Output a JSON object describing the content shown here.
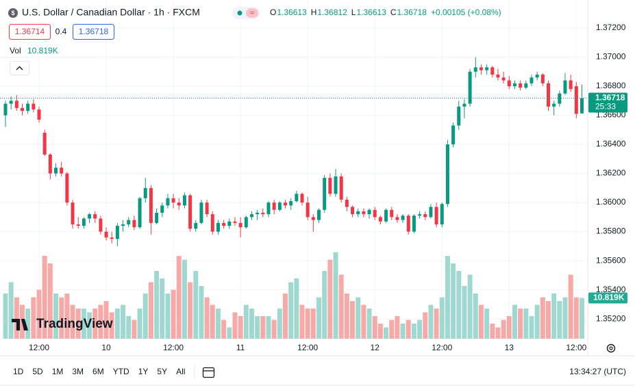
{
  "header": {
    "title": "U.S. Dollar / Canadian Dollar · 1h · FXCM",
    "legend": [
      {
        "label": "O",
        "value": "1.36613"
      },
      {
        "label": "H",
        "value": "1.36812"
      },
      {
        "label": "L",
        "value": "1.36613"
      },
      {
        "label": "C",
        "value": "1.36718"
      }
    ],
    "change": "+0.00105 (+0.08%)",
    "bid": "1.36714",
    "spread": "0.4",
    "ask": "1.36718",
    "vol_label": "Vol",
    "vol_value": "10.819K"
  },
  "logo": "TradingView",
  "toolbar": {
    "ranges": [
      "1D",
      "5D",
      "1M",
      "3M",
      "6M",
      "YTD",
      "1Y",
      "5Y",
      "All"
    ],
    "clock": "13:34:27 (UTC)"
  },
  "chart_data": {
    "type": "candlestick",
    "up_color": "#089981",
    "down_color": "#f23645",
    "volume_up_color": "#9fd8d1",
    "volume_down_color": "#f7a9a7",
    "ylim": [
      1.35064,
      1.37393
    ],
    "yticks": [
      {
        "value": 1.352,
        "label": "1.35200"
      },
      {
        "value": 1.354,
        "label": "1.35400"
      },
      {
        "value": 1.356,
        "label": "1.35600"
      },
      {
        "value": 1.358,
        "label": "1.35800"
      },
      {
        "value": 1.36,
        "label": "1.36000"
      },
      {
        "value": 1.362,
        "label": "1.36200"
      },
      {
        "value": 1.364,
        "label": "1.36400"
      },
      {
        "value": 1.366,
        "label": "1.36600"
      },
      {
        "value": 1.368,
        "label": "1.36800"
      },
      {
        "value": 1.37,
        "label": "1.37000"
      },
      {
        "value": 1.372,
        "label": "1.37200"
      }
    ],
    "x_labels": [
      {
        "value": 6,
        "label": "12:00"
      },
      {
        "value": 18,
        "label": "10"
      },
      {
        "value": 30,
        "label": "12:00"
      },
      {
        "value": 42,
        "label": "11"
      },
      {
        "value": 54,
        "label": "12:00"
      },
      {
        "value": 66,
        "label": "12"
      },
      {
        "value": 78,
        "label": "12:00"
      },
      {
        "value": 90,
        "label": "13"
      },
      {
        "value": 102,
        "label": "12:00"
      }
    ],
    "grid": true,
    "last_price": {
      "value": 1.36718,
      "label": "1.36718",
      "countdown": "25:33"
    },
    "volume_ylim": [
      0,
      90
    ],
    "volume_label": "10.819K",
    "ohlc": [
      [
        1.366,
        1.367,
        1.3652,
        1.3668
      ],
      [
        1.3668,
        1.3673,
        1.3664,
        1.367
      ],
      [
        1.367,
        1.3674,
        1.3663,
        1.3665
      ],
      [
        1.3665,
        1.3668,
        1.366,
        1.3663
      ],
      [
        1.3663,
        1.367,
        1.3661,
        1.3668
      ],
      [
        1.3668,
        1.3671,
        1.3662,
        1.3664
      ],
      [
        1.3664,
        1.3666,
        1.3655,
        1.3657
      ],
      [
        1.3648,
        1.365,
        1.3632,
        1.3633
      ],
      [
        1.3633,
        1.3634,
        1.3616,
        1.362
      ],
      [
        1.362,
        1.3627,
        1.3618,
        1.3624
      ],
      [
        1.3624,
        1.3628,
        1.3618,
        1.362
      ],
      [
        1.362,
        1.3621,
        1.3598,
        1.36
      ],
      [
        1.36,
        1.3602,
        1.3582,
        1.3585
      ],
      [
        1.3585,
        1.359,
        1.3582,
        1.3584
      ],
      [
        1.3584,
        1.359,
        1.3582,
        1.3589
      ],
      [
        1.3589,
        1.3593,
        1.3586,
        1.3592
      ],
      [
        1.3592,
        1.3594,
        1.3586,
        1.3589
      ],
      [
        1.3589,
        1.3591,
        1.3578,
        1.358
      ],
      [
        1.358,
        1.3583,
        1.3574,
        1.3576
      ],
      [
        1.3576,
        1.358,
        1.3572,
        1.3575
      ],
      [
        1.3575,
        1.3586,
        1.357,
        1.3584
      ],
      [
        1.3584,
        1.3588,
        1.358,
        1.3585
      ],
      [
        1.3585,
        1.359,
        1.3583,
        1.3588
      ],
      [
        1.3588,
        1.3591,
        1.3581,
        1.3583
      ],
      [
        1.3583,
        1.3604,
        1.3582,
        1.3603
      ],
      [
        1.3603,
        1.3617,
        1.36,
        1.361
      ],
      [
        1.361,
        1.3612,
        1.3578,
        1.3586
      ],
      [
        1.3586,
        1.3596,
        1.3585,
        1.3593
      ],
      [
        1.3593,
        1.36,
        1.359,
        1.3598
      ],
      [
        1.3598,
        1.3606,
        1.3596,
        1.3603
      ],
      [
        1.3603,
        1.3606,
        1.3596,
        1.36
      ],
      [
        1.36,
        1.3603,
        1.3595,
        1.3598
      ],
      [
        1.3598,
        1.3607,
        1.3596,
        1.3605
      ],
      [
        1.3605,
        1.3606,
        1.358,
        1.3582
      ],
      [
        1.3582,
        1.3588,
        1.358,
        1.3586
      ],
      [
        1.3586,
        1.3602,
        1.3585,
        1.36
      ],
      [
        1.36,
        1.3602,
        1.359,
        1.3592
      ],
      [
        1.3592,
        1.3594,
        1.3578,
        1.358
      ],
      [
        1.358,
        1.3588,
        1.3578,
        1.3586
      ],
      [
        1.3586,
        1.3588,
        1.3582,
        1.3584
      ],
      [
        1.3584,
        1.3589,
        1.3582,
        1.3587
      ],
      [
        1.3587,
        1.359,
        1.3584,
        1.3586
      ],
      [
        1.3586,
        1.359,
        1.3576,
        1.3583
      ],
      [
        1.3583,
        1.3591,
        1.3582,
        1.359
      ],
      [
        1.359,
        1.3594,
        1.3588,
        1.3592
      ],
      [
        1.3592,
        1.3595,
        1.3588,
        1.3593
      ],
      [
        1.3593,
        1.3596,
        1.359,
        1.3592
      ],
      [
        1.3592,
        1.3601,
        1.359,
        1.36
      ],
      [
        1.36,
        1.3602,
        1.3592,
        1.3595
      ],
      [
        1.3595,
        1.3601,
        1.3594,
        1.36
      ],
      [
        1.36,
        1.3602,
        1.3596,
        1.3598
      ],
      [
        1.3598,
        1.3603,
        1.3595,
        1.3601
      ],
      [
        1.3601,
        1.3608,
        1.36,
        1.3606
      ],
      [
        1.3606,
        1.3607,
        1.3598,
        1.36
      ],
      [
        1.36,
        1.3604,
        1.3588,
        1.359
      ],
      [
        1.359,
        1.3592,
        1.358,
        1.3588
      ],
      [
        1.3588,
        1.3596,
        1.3586,
        1.3595
      ],
      [
        1.3595,
        1.3619,
        1.3593,
        1.3617
      ],
      [
        1.3617,
        1.362,
        1.3604,
        1.3606
      ],
      [
        1.3606,
        1.3623,
        1.3604,
        1.3618
      ],
      [
        1.3618,
        1.362,
        1.36,
        1.3602
      ],
      [
        1.3602,
        1.3604,
        1.3594,
        1.3597
      ],
      [
        1.3597,
        1.3598,
        1.359,
        1.3592
      ],
      [
        1.3592,
        1.3596,
        1.359,
        1.3594
      ],
      [
        1.3594,
        1.3596,
        1.359,
        1.3592
      ],
      [
        1.3592,
        1.3596,
        1.3589,
        1.3595
      ],
      [
        1.3595,
        1.3597,
        1.3588,
        1.359
      ],
      [
        1.359,
        1.3591,
        1.3585,
        1.3587
      ],
      [
        1.3587,
        1.3596,
        1.3586,
        1.3595
      ],
      [
        1.3595,
        1.3597,
        1.3588,
        1.359
      ],
      [
        1.359,
        1.3592,
        1.3586,
        1.3588
      ],
      [
        1.3588,
        1.3592,
        1.3586,
        1.3591
      ],
      [
        1.3591,
        1.3592,
        1.3578,
        1.358
      ],
      [
        1.358,
        1.3592,
        1.3579,
        1.3591
      ],
      [
        1.3591,
        1.3594,
        1.3589,
        1.3592
      ],
      [
        1.3592,
        1.3594,
        1.3588,
        1.359
      ],
      [
        1.359,
        1.3599,
        1.3589,
        1.3597
      ],
      [
        1.3597,
        1.36,
        1.3583,
        1.3585
      ],
      [
        1.3585,
        1.36,
        1.3583,
        1.3599
      ],
      [
        1.3599,
        1.3643,
        1.3597,
        1.364
      ],
      [
        1.364,
        1.3655,
        1.3638,
        1.3653
      ],
      [
        1.3653,
        1.367,
        1.365,
        1.3666
      ],
      [
        1.3666,
        1.3671,
        1.3658,
        1.3668
      ],
      [
        1.3668,
        1.3692,
        1.3666,
        1.369
      ],
      [
        1.369,
        1.37,
        1.3686,
        1.3693
      ],
      [
        1.3693,
        1.3695,
        1.3688,
        1.3691
      ],
      [
        1.3691,
        1.3695,
        1.3688,
        1.3693
      ],
      [
        1.3693,
        1.3694,
        1.3686,
        1.3688
      ],
      [
        1.3688,
        1.3692,
        1.3684,
        1.3686
      ],
      [
        1.3686,
        1.369,
        1.3682,
        1.3684
      ],
      [
        1.3684,
        1.3687,
        1.3678,
        1.368
      ],
      [
        1.368,
        1.3684,
        1.3678,
        1.3682
      ],
      [
        1.3682,
        1.3684,
        1.3677,
        1.3679
      ],
      [
        1.3679,
        1.3684,
        1.3678,
        1.3682
      ],
      [
        1.3682,
        1.3688,
        1.368,
        1.3686
      ],
      [
        1.3686,
        1.369,
        1.3684,
        1.3688
      ],
      [
        1.3688,
        1.3689,
        1.368,
        1.3682
      ],
      [
        1.3682,
        1.3684,
        1.3663,
        1.3666
      ],
      [
        1.3666,
        1.367,
        1.366,
        1.3668
      ],
      [
        1.3668,
        1.3677,
        1.3666,
        1.3675
      ],
      [
        1.3675,
        1.3689,
        1.3674,
        1.3684
      ],
      [
        1.3684,
        1.3688,
        1.3676,
        1.3678
      ],
      [
        1.368,
        1.3683,
        1.3658,
        1.3661
      ],
      [
        1.36613,
        1.36812,
        1.36613,
        1.36718
      ]
    ],
    "volume": [
      12,
      15,
      11,
      9,
      8,
      11,
      13,
      22,
      20,
      12,
      11,
      12,
      9,
      8,
      8,
      7,
      8,
      9,
      10,
      7,
      8,
      9,
      6,
      5,
      8,
      12,
      15,
      18,
      16,
      12,
      13,
      22,
      21,
      15,
      18,
      14,
      11,
      9,
      8,
      5,
      3,
      7,
      6,
      9,
      8,
      6,
      6,
      6,
      5,
      8,
      12,
      15,
      16,
      9,
      8,
      8,
      11,
      18,
      21,
      23,
      17,
      12,
      10,
      11,
      9,
      8,
      6,
      4,
      3,
      5,
      6,
      4,
      5,
      4,
      5,
      7,
      9,
      8,
      11,
      22,
      20,
      18,
      14,
      17,
      12,
      9,
      8,
      4,
      3,
      5,
      6,
      9,
      8,
      8,
      6,
      9,
      11,
      10,
      12,
      10,
      11,
      17,
      11,
      10.819
    ]
  }
}
